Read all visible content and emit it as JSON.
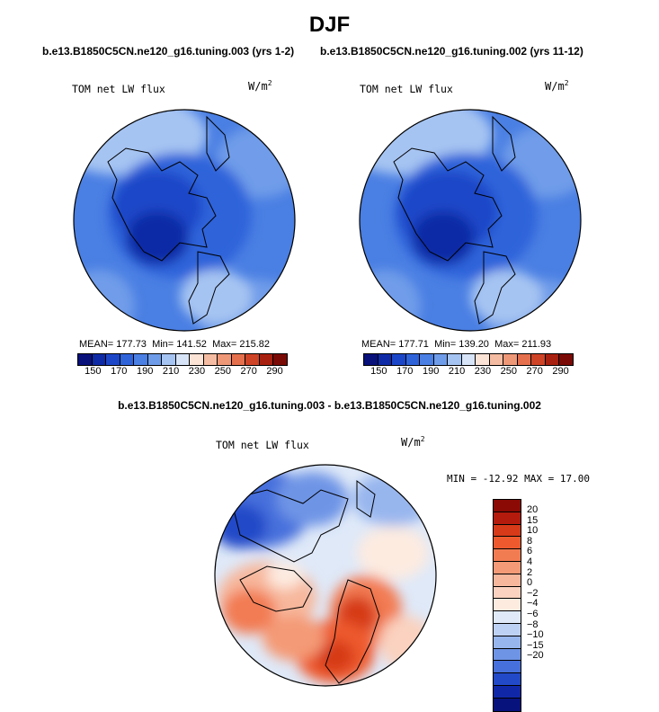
{
  "season": "DJF",
  "case_left": "b.e13.B1850C5CN.ne120_g16.tuning.003 (yrs 1-2)",
  "case_right": "b.e13.B1850C5CN.ne120_g16.tuning.002 (yrs 11-12)",
  "diff_title": "b.e13.B1850C5CN.ne120_g16.tuning.003 - b.e13.B1850C5CN.ne120_g16.tuning.002",
  "chart_data": [
    {
      "type": "heatmap",
      "projection": "north polar stereographic",
      "variable": "TOM net LW flux",
      "units_base": "W/m",
      "units_exp": "2",
      "mean_label": "MEAN=",
      "mean": "177.73",
      "min_label": "Min=",
      "min": "141.52",
      "max_label": "Max=",
      "max": "215.82",
      "levels": [
        "150",
        "170",
        "190",
        "210",
        "230",
        "250",
        "270",
        "290"
      ],
      "colors": [
        "#08107a",
        "#0f2aa6",
        "#1c46c8",
        "#2f63da",
        "#4a7fe3",
        "#6f9ce9",
        "#a6c4f2",
        "#d7e4f8",
        "#fbe3d6",
        "#f4bca2",
        "#ee9878",
        "#e4704e",
        "#cf4327",
        "#a8200f",
        "#7a0a05"
      ]
    },
    {
      "type": "heatmap",
      "projection": "north polar stereographic",
      "variable": "TOM net LW flux",
      "units_base": "W/m",
      "units_exp": "2",
      "mean_label": "MEAN=",
      "mean": "177.71",
      "min_label": "Min=",
      "min": "139.20",
      "max_label": "Max=",
      "max": "211.93",
      "levels": [
        "150",
        "170",
        "190",
        "210",
        "230",
        "250",
        "270",
        "290"
      ],
      "colors": [
        "#08107a",
        "#0f2aa6",
        "#1c46c8",
        "#2f63da",
        "#4a7fe3",
        "#6f9ce9",
        "#a6c4f2",
        "#d7e4f8",
        "#fbe3d6",
        "#f4bca2",
        "#ee9878",
        "#e4704e",
        "#cf4327",
        "#a8200f",
        "#7a0a05"
      ]
    },
    {
      "type": "heatmap",
      "projection": "north polar stereographic",
      "variable": "TOM net LW flux",
      "units_base": "W/m",
      "units_exp": "2",
      "min_label": "MIN =",
      "min": "-12.92",
      "max_label": "MAX =",
      "max": "17.00",
      "levels": [
        "20",
        "15",
        "10",
        "8",
        "6",
        "4",
        "2",
        "0",
        "−2",
        "−4",
        "−6",
        "−8",
        "−10",
        "−15",
        "−20"
      ],
      "colors": [
        "#8b0a05",
        "#b41b0c",
        "#d63a18",
        "#ee5a2e",
        "#f27c52",
        "#f49a76",
        "#f7b79c",
        "#fad2bf",
        "#fdebe0",
        "#dfe9f8",
        "#bdd1f4",
        "#98b6ee",
        "#6e94e6",
        "#4670dc",
        "#2249c8",
        "#1028a8",
        "#08127c"
      ]
    }
  ]
}
